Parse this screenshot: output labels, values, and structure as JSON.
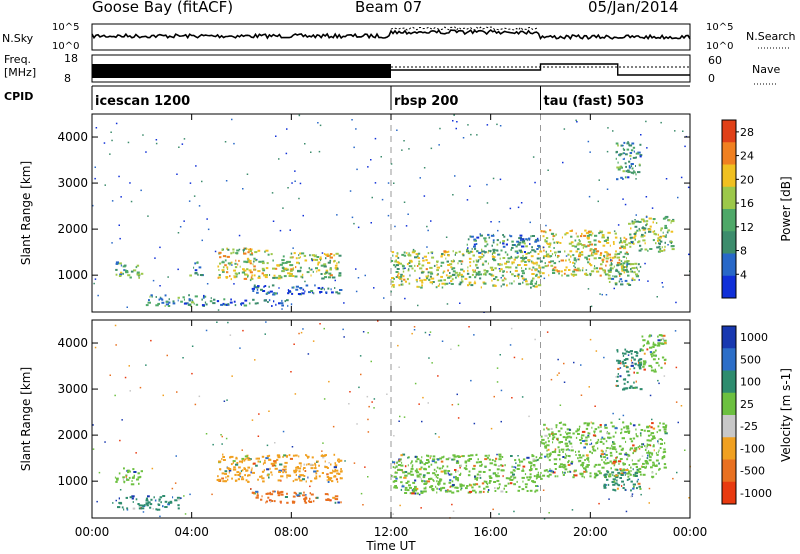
{
  "header": {
    "title": "Goose Bay (fitACF)",
    "beam": "Beam 07",
    "date": "05/Jan/2014"
  },
  "summary_panels": {
    "nsky_label": "N.Sky",
    "nsky_top": "10^5",
    "nsky_bottom": "10^0",
    "nsearch_label": "N.Search",
    "nsearch_top": "10^5",
    "nsearch_bottom": "10^0",
    "freq_label": "Freq.",
    "freq_unit": "[MHz]",
    "freq_top": "18",
    "freq_bottom": "8",
    "nave_label": "Nave",
    "nave_top": "60",
    "nave_bottom": "0",
    "cpid_label": "CPID",
    "cpid_segments": [
      {
        "name": "icescan 1200",
        "start": "00:00",
        "end": "12:00"
      },
      {
        "name": "rbsp 200",
        "start": "12:00",
        "end": "18:00"
      },
      {
        "name": "tau (fast) 503",
        "start": "18:00",
        "end": "24:00"
      }
    ]
  },
  "colors": {
    "power_scale": [
      "#1030d8",
      "#2868c8",
      "#3c8c6c",
      "#4ea868",
      "#9cc84a",
      "#f0c020",
      "#f08020",
      "#e04018"
    ],
    "velocity_scale": [
      "#1838b0",
      "#2c6ec8",
      "#2e8c6e",
      "#6cc040",
      "#c8c8c8",
      "#f0a020",
      "#e87020",
      "#e83a10"
    ]
  },
  "chart_data": [
    {
      "type": "heatmap",
      "title": "",
      "xlabel": "",
      "ylabel": "Slant Range [km]",
      "xlim": [
        0,
        24
      ],
      "ylim": [
        200,
        4500
      ],
      "x_ticks": [
        0,
        4,
        8,
        12,
        16,
        20,
        24
      ],
      "y_ticks": [
        1000,
        2000,
        3000,
        4000
      ],
      "colorbar_label": "Power [dB]",
      "colorbar_ticks": [
        "4",
        "8",
        "12",
        "16",
        "20",
        "24",
        "28"
      ],
      "colorbar_range": [
        0,
        30
      ],
      "patches": [
        {
          "t": [
            0.9,
            2.0
          ],
          "r": [
            950,
            1300
          ],
          "level": 12
        },
        {
          "t": [
            2.1,
            4.9
          ],
          "r": [
            350,
            600
          ],
          "level": 10
        },
        {
          "t": [
            3.9,
            4.4
          ],
          "r": [
            1000,
            1300
          ],
          "level": 10
        },
        {
          "t": [
            5.0,
            7.0
          ],
          "r": [
            900,
            1600
          ],
          "level": 18
        },
        {
          "t": [
            7.0,
            10.0
          ],
          "r": [
            950,
            1500
          ],
          "level": 16
        },
        {
          "t": [
            6.3,
            10.0
          ],
          "r": [
            600,
            800
          ],
          "level": 6
        },
        {
          "t": [
            5.0,
            8.0
          ],
          "r": [
            350,
            500
          ],
          "level": 6
        },
        {
          "t": [
            12.0,
            18.0
          ],
          "r": [
            750,
            1550
          ],
          "level": 16
        },
        {
          "t": [
            15.0,
            18.0
          ],
          "r": [
            1500,
            1900
          ],
          "level": 10
        },
        {
          "t": [
            18.0,
            21.5
          ],
          "r": [
            1000,
            2000
          ],
          "level": 18
        },
        {
          "t": [
            21.5,
            23.3
          ],
          "r": [
            1500,
            2300
          ],
          "level": 14
        },
        {
          "t": [
            20.5,
            22.0
          ],
          "r": [
            800,
            1300
          ],
          "level": 12
        },
        {
          "t": [
            21.0,
            22.0
          ],
          "r": [
            3100,
            3900
          ],
          "level": 10
        }
      ]
    },
    {
      "type": "heatmap",
      "title": "",
      "xlabel": "Time UT",
      "ylabel": "Slant Range [km]",
      "xlim": [
        0,
        24
      ],
      "ylim": [
        200,
        4500
      ],
      "x_ticks": [
        0,
        4,
        8,
        12,
        16,
        20,
        24
      ],
      "x_tick_labels": [
        "00:00",
        "04:00",
        "08:00",
        "12:00",
        "16:00",
        "20:00",
        "00:00"
      ],
      "y_ticks": [
        1000,
        2000,
        3000,
        4000
      ],
      "colorbar_label": "Velocity [m s-1]",
      "colorbar_ticks": [
        "1000",
        "500",
        "100",
        "25",
        "-25",
        "-100",
        "-500",
        "-1000"
      ],
      "patches": [
        {
          "t": [
            0.9,
            2.0
          ],
          "r": [
            950,
            1300
          ],
          "level": "25"
        },
        {
          "t": [
            1.0,
            3.5
          ],
          "r": [
            400,
            700
          ],
          "level": "100"
        },
        {
          "t": [
            5.0,
            10.0
          ],
          "r": [
            1000,
            1600
          ],
          "level": "-100"
        },
        {
          "t": [
            6.3,
            10.0
          ],
          "r": [
            550,
            800
          ],
          "level": "-500"
        },
        {
          "t": [
            12.0,
            18.0
          ],
          "r": [
            750,
            1600
          ],
          "level": "25"
        },
        {
          "t": [
            18.0,
            23.0
          ],
          "r": [
            1100,
            2300
          ],
          "level": "25"
        },
        {
          "t": [
            20.5,
            22.0
          ],
          "r": [
            800,
            1300
          ],
          "level": "100"
        },
        {
          "t": [
            21.0,
            22.0
          ],
          "r": [
            3000,
            3900
          ],
          "level": "100"
        },
        {
          "t": [
            22.0,
            23.0
          ],
          "r": [
            3400,
            4200
          ],
          "level": "25"
        }
      ]
    }
  ]
}
